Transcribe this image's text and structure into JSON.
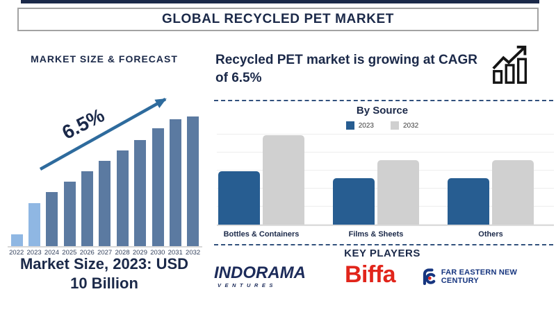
{
  "header": {
    "title": "GLOBAL RECYCLED PET MARKET"
  },
  "left_panel": {
    "heading": "MARKET SIZE & FORECAST",
    "cagr_label": "6.5%",
    "caption": "Market Size, 2023: USD 10 Billion"
  },
  "right_panel": {
    "heading": "Recycled PET market is growing at CAGR of 6.5%",
    "growth_icon": "growth-chart-icon",
    "key_players_title": "KEY PLAYERS",
    "key_players": [
      {
        "name": "Indorama Ventures",
        "wordmark": "INDORAMA",
        "subtext": "VENTURES",
        "color": "#1c2b5a"
      },
      {
        "name": "Biffa",
        "wordmark": "Biffa",
        "color": "#e1251b"
      },
      {
        "name": "Far Eastern New Century",
        "wordmark": "FAR EASTERN NEW CENTURY",
        "color": "#16357f"
      }
    ]
  },
  "chart_data": [
    {
      "type": "bar",
      "title": "MARKET SIZE & FORECAST",
      "categories": [
        "2022",
        "2023",
        "2024",
        "2025",
        "2026",
        "2027",
        "2028",
        "2029",
        "2030",
        "2031",
        "2032"
      ],
      "values": [
        9,
        33,
        42,
        50,
        58,
        66,
        74,
        82,
        91,
        98,
        100
      ],
      "xlabel": "",
      "ylabel": "",
      "ylim": [
        0,
        100
      ],
      "unit": "relative index (2032 = 100), estimated from bar heights",
      "annotation": "6.5% CAGR arrow rising left-to-right",
      "bar_color": "#5b7aa1",
      "highlight_color": "#8fb7e3",
      "highlight_categories": [
        "2022",
        "2023"
      ],
      "grid": false,
      "legend": false
    },
    {
      "type": "bar",
      "title": "By Source",
      "categories": [
        "Bottles & Containers",
        "Films & Sheets",
        "Others"
      ],
      "series": [
        {
          "name": "2023",
          "color": "#275d91",
          "values": [
            60,
            52,
            52
          ]
        },
        {
          "name": "2032",
          "color": "#d0d0d0",
          "values": [
            100,
            72,
            72
          ]
        }
      ],
      "ylim": [
        0,
        100
      ],
      "unit": "relative index (largest bar = 100), estimated from bar heights",
      "grid": true,
      "legend": "top-center"
    }
  ],
  "colors": {
    "navy_text": "#1b2949",
    "arrow": "#2e6b9d",
    "dashed_line": "#31507c",
    "axis_line": "#d8d8d8",
    "biffa_red": "#e1251b"
  }
}
